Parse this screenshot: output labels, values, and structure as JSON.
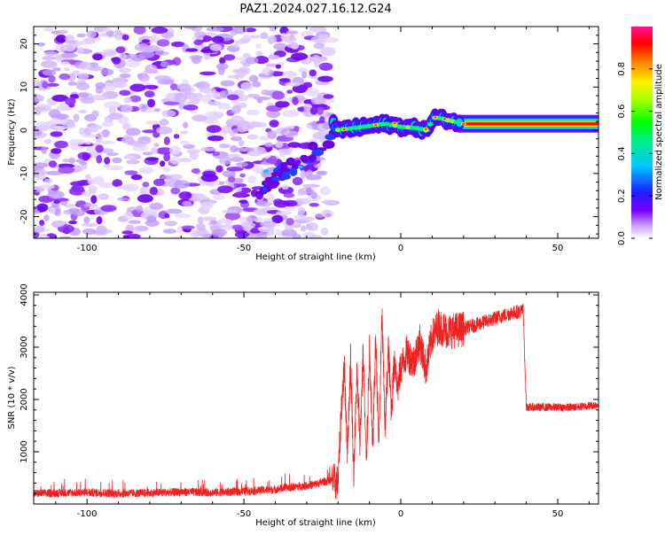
{
  "title": "PAZ1.2024.027.16.12.G24",
  "chart_data": [
    {
      "type": "heatmap",
      "xlabel": "Height of straight line (km)",
      "ylabel": "Frequency (Hz)",
      "xlim": [
        -117,
        63
      ],
      "ylim": [
        -25,
        24
      ],
      "x_ticks": [
        -100,
        -50,
        0,
        50
      ],
      "y_ticks": [
        -20,
        -10,
        0,
        10,
        20
      ],
      "colorbar": {
        "label": "Normalized spectral amplitude",
        "range": [
          0,
          1
        ],
        "ticks": [
          0.0,
          0.2,
          0.4,
          0.6,
          0.8
        ],
        "colormap": "rainbow (white-violet-blue-cyan-green-yellow-red-pink)"
      },
      "features": {
        "noise_region_x": [
          -117,
          -22
        ],
        "signal_region_x": [
          -22,
          63
        ],
        "signal_frequency_hz": 1.5,
        "signal_track": [
          [
            -21,
            0.0
          ],
          [
            -15,
            0.5
          ],
          [
            -10,
            1.0
          ],
          [
            -5,
            1.5
          ],
          [
            0,
            0.8
          ],
          [
            5,
            0.5
          ],
          [
            8,
            0.0
          ],
          [
            11,
            3.0
          ],
          [
            14,
            2.5
          ],
          [
            20,
            1.5
          ],
          [
            30,
            1.5
          ],
          [
            40,
            1.5
          ],
          [
            63,
            1.5
          ]
        ]
      },
      "grid": false
    },
    {
      "type": "line",
      "xlabel": "Height of straight line (km)",
      "ylabel": "SNR (10 * v/v)",
      "xlim": [
        -117,
        63
      ],
      "ylim": [
        0,
        4050
      ],
      "x_ticks": [
        -100,
        -50,
        0,
        50
      ],
      "y_ticks": [
        1000,
        2000,
        3000,
        4000
      ],
      "series": [
        {
          "color": "#ee2222",
          "x": [
            -117,
            -100,
            -90,
            -80,
            -70,
            -60,
            -50,
            -40,
            -35,
            -30,
            -27,
            -25,
            -22,
            -20,
            -19,
            -18,
            -17,
            -16,
            -15,
            -14,
            -13,
            -12,
            -11,
            -10,
            -9,
            -8,
            -7,
            -6,
            -5,
            -4,
            -3,
            -2,
            -1,
            0,
            2,
            4,
            6,
            8,
            10,
            12,
            15,
            20,
            25,
            30,
            35,
            39,
            40,
            45,
            50,
            55,
            63
          ],
          "y": [
            200,
            220,
            200,
            210,
            230,
            220,
            240,
            280,
            320,
            350,
            380,
            420,
            450,
            400,
            1800,
            2600,
            1000,
            2800,
            600,
            2500,
            1200,
            2900,
            700,
            3000,
            1000,
            3200,
            1100,
            3600,
            1400,
            3000,
            1800,
            2800,
            2200,
            2600,
            2900,
            2700,
            3100,
            2600,
            3200,
            3400,
            3300,
            3350,
            3450,
            3550,
            3650,
            3700,
            1850,
            1850,
            1850,
            1850,
            1900
          ]
        }
      ],
      "grid": false
    }
  ]
}
